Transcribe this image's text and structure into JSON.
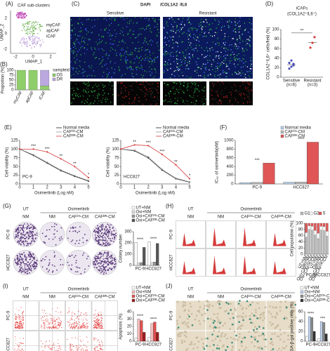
{
  "figure": {
    "A": {
      "label": "(A)",
      "title": "CAF sub-clusters",
      "clusters": [
        "myCAF",
        "apCAF",
        "iCAF"
      ],
      "xlabel": "UMAP_1",
      "ylabel": "UMAP_2",
      "xticks": [
        "-2",
        "0",
        "2"
      ],
      "yticks": [
        "2",
        "0",
        "-2"
      ]
    },
    "C": {
      "label": "(C)",
      "stain": [
        "DAPI",
        "/COL1A2",
        "/IL6"
      ],
      "columns": [
        "Sensitive",
        "Resistant"
      ]
    },
    "G": {
      "label": "(G)",
      "treat": [
        "UT",
        "Osimertinib"
      ],
      "columns": [
        "NM",
        "NM",
        "CAFᴼˢ-CM",
        "CAFᴰᴿ-CM"
      ],
      "rows": [
        "PC-9",
        "HCC827"
      ]
    },
    "H": {
      "label": "(H)",
      "treat": [
        "UT",
        "Osimertinib"
      ],
      "columns": [
        "NM",
        "NM",
        "CAFᴼˢ-CM",
        "CAFᴰᴿ-CM"
      ],
      "rows": [
        "PC-9",
        "HCC827"
      ]
    },
    "I": {
      "label": "(I)",
      "treat": [
        "UT",
        "Osimertinib"
      ],
      "columns": [
        "NM",
        "NM",
        "CAFᴼˢ-CM",
        "CAFᴰᴿ-CM"
      ],
      "rows": [
        "PC-9",
        "HCC827"
      ]
    },
    "J": {
      "label": "(J)",
      "treat": [
        "UT",
        "Osimertinib"
      ],
      "columns": [
        "NM",
        "NM",
        "CAFᴼˢ-CM",
        "CAFᴰᴿ-CM"
      ],
      "rows": [
        "PC-9",
        "HCC827"
      ]
    }
  },
  "chart_data": [
    {
      "type": "stacked",
      "label": "(B)",
      "ylabel": "Proportion (%)",
      "legend_title": "sampleid",
      "categories": [
        "myCAF",
        "apCAF",
        "iCAF"
      ],
      "series": [
        {
          "name": "OS",
          "color": "#8fce6a",
          "values": [
            100,
            100,
            20
          ]
        },
        {
          "name": "DR",
          "color": "#bba8de",
          "values": [
            0,
            0,
            80
          ]
        }
      ],
      "ylim": [
        0,
        100
      ],
      "yticks": [
        0,
        25,
        50,
        75,
        100
      ]
    },
    {
      "type": "dot",
      "label": "(D)",
      "title": "iCAFs",
      "subtitle": "(COL1A2⁺IL6⁺)",
      "ylabel": "COL1A2⁺IL6⁺ cells/field (%)",
      "categories": [
        "Sensitive",
        "Resistant"
      ],
      "notes": [
        "(n=6)",
        "(n=3)"
      ],
      "colors": [
        "#4a4fb5",
        "#d43c3c"
      ],
      "values": [
        [
          18,
          22,
          28,
          30,
          35,
          25
        ],
        [
          62,
          72,
          84
        ]
      ],
      "ylim": [
        0,
        100
      ],
      "yticks": [
        0,
        20,
        40,
        60,
        80,
        100
      ],
      "annotation": "**"
    },
    {
      "type": "line",
      "label": "(E)",
      "title": "PC-9",
      "xlabel": "Osimertinib (Log nM)",
      "ylabel": "Cell viability (%)",
      "x": [
        0,
        1,
        2,
        3,
        4,
        5
      ],
      "xlim": [
        0,
        5
      ],
      "xticks": [
        0,
        1,
        2,
        3,
        4,
        5
      ],
      "ylim": [
        0,
        125
      ],
      "yticks": [
        0,
        25,
        50,
        75,
        100,
        125
      ],
      "series": [
        {
          "name": "Normal media",
          "color": "#222222",
          "values": [
            100,
            82,
            60,
            38,
            22,
            8
          ]
        },
        {
          "name": "CAFᴼˢ-CM",
          "color": "#999999",
          "values": [
            100,
            84,
            62,
            40,
            24,
            10
          ]
        },
        {
          "name": "CAFᴰᴿ-CM",
          "color": "#d43c3c",
          "values": [
            100,
            100,
            92,
            72,
            50,
            18
          ]
        }
      ],
      "annotations": [
        null,
        "***",
        "***",
        "**",
        "**",
        "*"
      ]
    },
    {
      "type": "line",
      "title": "HCC827",
      "xlabel": "Osimertinib (Log nM)",
      "ylabel": "Cell viability (%)",
      "x": [
        0,
        1,
        2,
        3,
        4,
        5
      ],
      "xlim": [
        0,
        5
      ],
      "xticks": [
        0,
        1,
        2,
        3,
        4,
        5
      ],
      "ylim": [
        0,
        125
      ],
      "yticks": [
        0,
        25,
        50,
        75,
        100,
        125
      ],
      "series": [
        {
          "name": "Normal media",
          "color": "#222222",
          "values": [
            100,
            95,
            75,
            40,
            15,
            5
          ]
        },
        {
          "name": "CAFᴼˢ-CM",
          "color": "#999999",
          "values": [
            100,
            97,
            78,
            42,
            17,
            6
          ]
        },
        {
          "name": "CAFᴰᴿ-CM",
          "color": "#d43c3c",
          "values": [
            100,
            112,
            110,
            85,
            55,
            15
          ]
        }
      ],
      "annotations": [
        null,
        "**",
        "***",
        "***",
        "**",
        "*"
      ]
    },
    {
      "type": "bar",
      "label": "(F)",
      "ylabel": "IC₅₀ of osimertinib(nM)",
      "categories": [
        "PC-9",
        "HCC827"
      ],
      "series": [
        {
          "name": "Normal media",
          "color": "#b8cfe8",
          "values": [
            30,
            40
          ]
        },
        {
          "name": "CAFᴼˢ-CM",
          "color": "#bbbbbb",
          "values": [
            35,
            45
          ]
        },
        {
          "name": "CAFᴰᴿ-CM",
          "color": "#e05555",
          "values": [
            480,
            960
          ]
        }
      ],
      "ylim": [
        0,
        1000
      ],
      "yticks": [
        0,
        200,
        400,
        600,
        800,
        1000
      ],
      "annotations": [
        "***",
        "****"
      ]
    },
    {
      "type": "bar",
      "ylabel": "Colony number",
      "categories": [
        "PC-9",
        "HCC827"
      ],
      "series": [
        {
          "name": "UT+NM",
          "color": "#ffffff",
          "values": [
            205,
            210
          ]
        },
        {
          "name": "Osi+NM",
          "color": "#dddddd",
          "values": [
            20,
            25
          ]
        },
        {
          "name": "Osi+CAFᴼˢ-CM",
          "color": "#999999",
          "values": [
            25,
            30
          ]
        },
        {
          "name": "Osi+CAFᴰᴿ-CM",
          "color": "#555555",
          "values": [
            160,
            195
          ]
        }
      ],
      "ylim": [
        0,
        300
      ],
      "yticks": [
        0,
        100,
        200,
        300
      ],
      "annotations": [
        "****",
        "****"
      ]
    },
    {
      "type": "stacked",
      "ylabel": "Cell population (%)",
      "categories": [
        "UT+NM",
        "Osi+NM",
        "Osi+CAFᴼˢ-CM",
        "Osi+CAFᴰᴿ-CM",
        "UT+NM",
        "Osi+NM",
        "Osi+CAFᴼˢ-CM",
        "Osi+CAFᴰᴿ-CM"
      ],
      "groups": [
        "PC-9",
        "HCC827"
      ],
      "series": [
        {
          "name": "G1",
          "color": "#bbbbbb",
          "values": [
            55,
            80,
            78,
            62,
            50,
            78,
            76,
            58
          ]
        },
        {
          "name": "G2",
          "color": "#ffffff",
          "values": [
            15,
            12,
            12,
            15,
            18,
            12,
            13,
            16
          ]
        },
        {
          "name": "S",
          "color": "#e35656",
          "values": [
            30,
            8,
            10,
            23,
            32,
            10,
            11,
            26
          ]
        }
      ],
      "ylim": [
        0,
        100
      ],
      "yticks": [
        0,
        20,
        40,
        60,
        80,
        100
      ]
    },
    {
      "type": "bar",
      "ylabel": "Apoptosis (%)",
      "categories": [
        "PC-9",
        "HCC827"
      ],
      "series": [
        {
          "name": "UT+NM",
          "color": "#ffffff",
          "values": [
            4,
            5
          ]
        },
        {
          "name": "Osi+NM",
          "color": "#f5bcbc",
          "values": [
            30,
            24
          ]
        },
        {
          "name": "Osi+CAFᴼˢ-CM",
          "color": "#e05050",
          "values": [
            28,
            26
          ]
        },
        {
          "name": "Osi+CAFᴰᴿ-CM",
          "color": "#9b1c1c",
          "values": [
            12,
            12
          ]
        }
      ],
      "ylim": [
        0,
        40
      ],
      "yticks": [
        0,
        10,
        20,
        30,
        40
      ],
      "annotations": [
        "****",
        "****"
      ]
    },
    {
      "type": "bar",
      "ylabel": "SA-β-gal positive cells (%)",
      "categories": [
        "PC-9",
        "HCC827"
      ],
      "series": [
        {
          "name": "UT+NM",
          "color": "#ffffff",
          "values": [
            10,
            5
          ]
        },
        {
          "name": "Osi+NM",
          "color": "#bcd0ea",
          "values": [
            50,
            40
          ]
        },
        {
          "name": "Osi+CAFᴼˢ-CM",
          "color": "#8a8a8a",
          "values": [
            48,
            38
          ]
        },
        {
          "name": "Osi+CAFᴰᴿ-CM",
          "color": "#333333",
          "values": [
            20,
            15
          ]
        }
      ],
      "ylim": [
        0,
        60
      ],
      "yticks": [
        0,
        20,
        40,
        60
      ],
      "annotations": [
        "****",
        "***"
      ]
    }
  ]
}
